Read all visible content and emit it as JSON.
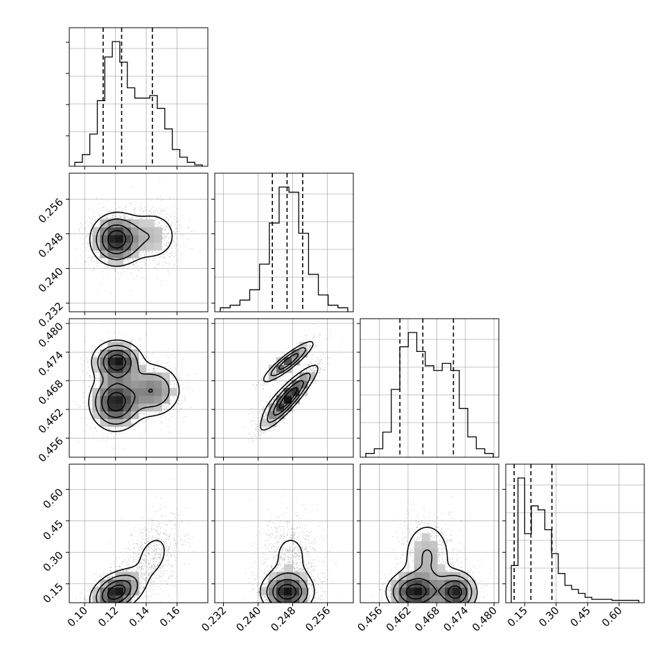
{
  "chart_data": {
    "type": "corner",
    "title": "",
    "parameters": [
      {
        "range": [
          0.09,
          0.18
        ],
        "ticks": [
          "0.10",
          "0.12",
          "0.14",
          "0.16"
        ],
        "tick_values": [
          0.1,
          0.12,
          0.14,
          0.16
        ],
        "quantiles": [
          0.112,
          0.124,
          0.144
        ]
      },
      {
        "range": [
          0.23,
          0.262
        ],
        "ticks": [
          "0.232",
          "0.240",
          "0.248",
          "0.256"
        ],
        "tick_values": [
          0.232,
          0.24,
          0.248,
          0.256
        ],
        "quantiles": [
          0.2433,
          0.2467,
          0.2503
        ]
      },
      {
        "range": [
          0.452,
          0.481
        ],
        "ticks": [
          "0.456",
          "0.462",
          "0.468",
          "0.474",
          "0.480"
        ],
        "tick_values": [
          0.456,
          0.462,
          0.468,
          0.474,
          0.48
        ],
        "quantiles": [
          0.4603,
          0.4651,
          0.4715
        ]
      },
      {
        "range": [
          0.06,
          0.72
        ],
        "ticks": [
          "0.15",
          "0.30",
          "0.45",
          "0.60"
        ],
        "tick_values": [
          0.15,
          0.3,
          0.45,
          0.6
        ],
        "quantiles": [
          0.1,
          0.18,
          0.28
        ]
      }
    ],
    "histograms": [
      [
        1,
        4,
        12,
        25,
        42,
        48,
        40,
        30,
        26,
        26,
        27,
        22,
        14,
        6,
        3,
        1,
        0
      ],
      [
        1,
        2,
        4,
        8,
        18,
        34,
        48,
        46,
        30,
        14,
        6,
        2,
        1
      ],
      [
        1,
        3,
        10,
        28,
        46,
        52,
        44,
        38,
        36,
        39,
        36,
        20,
        8,
        3,
        1
      ],
      [
        18,
        62,
        34,
        48,
        46,
        36,
        24,
        14,
        8,
        6,
        4,
        2,
        1,
        1,
        1,
        0.5,
        0.5,
        0.5,
        0.5
      ]
    ],
    "modes": [
      {
        "name": "",
        "p": [
          0.12,
          0.2465,
          0.4635,
          0.11
        ],
        "s": [
          0.0085,
          0.003,
          0.003,
          0.05
        ],
        "w": 0.42
      },
      {
        "name": "",
        "p": [
          0.121,
          0.247,
          0.472,
          0.11
        ],
        "s": [
          0.008,
          0.003,
          0.0022,
          0.05
        ],
        "w": 0.3
      },
      {
        "name": "",
        "p": [
          0.144,
          0.2475,
          0.466,
          0.28
        ],
        "s": [
          0.01,
          0.0035,
          0.003,
          0.1
        ],
        "w": 0.28
      }
    ]
  }
}
